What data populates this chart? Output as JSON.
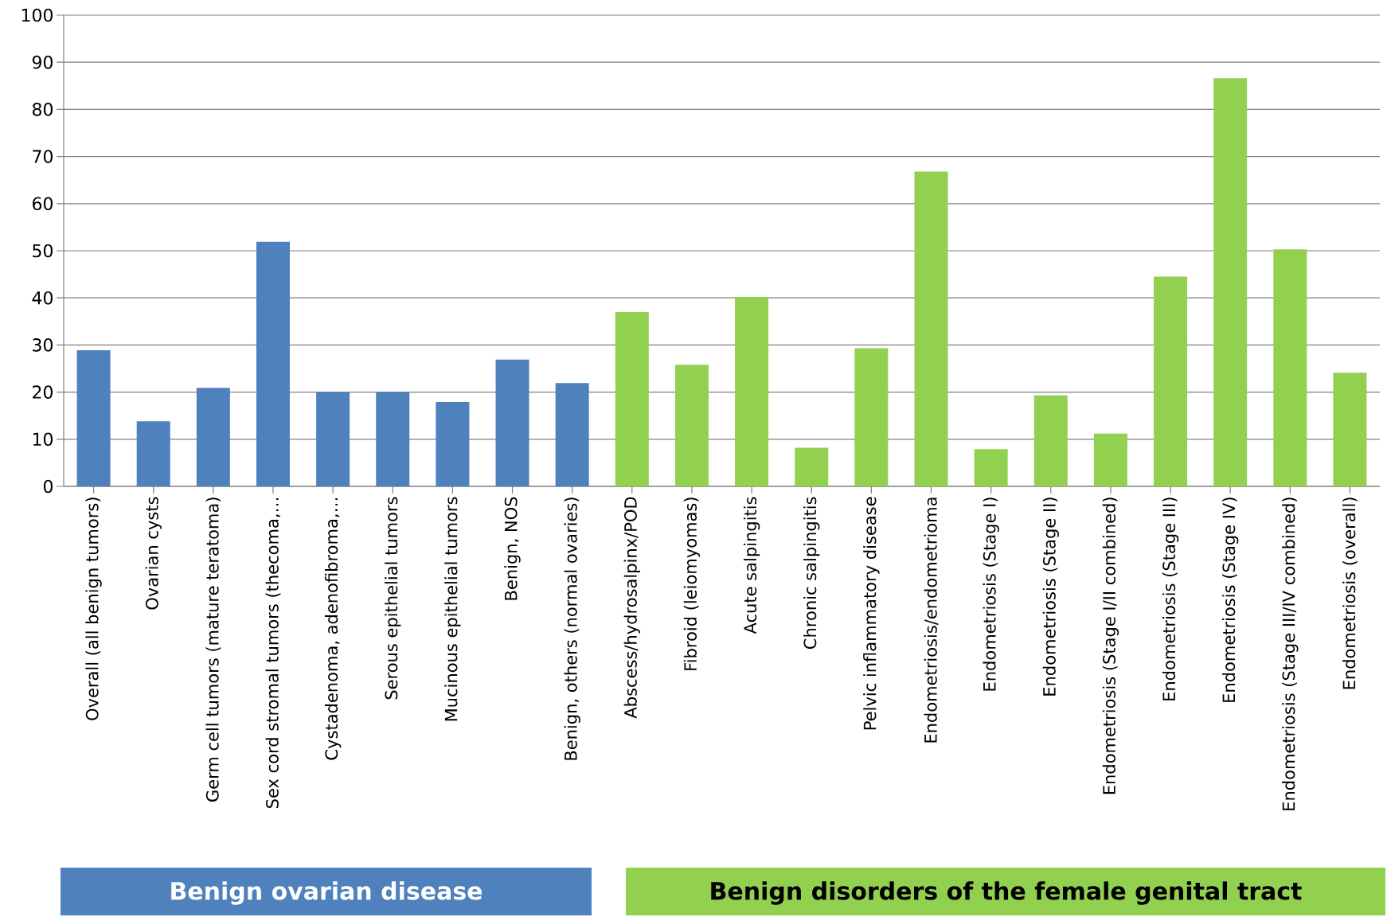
{
  "chart_data": {
    "type": "bar",
    "categories": [
      "Overall (all benign tumors)",
      "Ovarian cysts",
      "Germ cell tumors (mature teratoma)",
      "Sex cord stromal tumors (thecoma,…",
      "Cystadenoma, adenofibroma,…",
      "Serous epithelial tumors",
      "Mucinous epithelial tumors",
      "Benign, NOS",
      "Benign, others (normal ovaries)",
      "Abscess/hydrosalpinx/POD",
      "Fibroid (leiomyomas)",
      "Acute salpingitis",
      "Chronic salpingitis",
      "Pelvic inflammatory disease",
      "Endometriosis/endometrioma",
      "Endometriosis (Stage I)",
      "Endometriosis (Stage II)",
      "Endometriosis (Stage I/II combined)",
      "Endometriosis (Stage III)",
      "Endometriosis (Stage IV)",
      "Endometriosis (Stage III/IV combined)",
      "Endometriosis (overall)"
    ],
    "values": [
      28.9,
      13.8,
      20.9,
      51.9,
      20,
      20,
      17.9,
      26.9,
      21.9,
      37,
      25.8,
      40.2,
      8.2,
      29.3,
      66.8,
      7.9,
      19.3,
      11.2,
      44.5,
      86.6,
      50.3,
      24.1
    ],
    "colors": [
      "#4f81bd",
      "#4f81bd",
      "#4f81bd",
      "#4f81bd",
      "#4f81bd",
      "#4f81bd",
      "#4f81bd",
      "#4f81bd",
      "#4f81bd",
      "#92d050",
      "#92d050",
      "#92d050",
      "#92d050",
      "#92d050",
      "#92d050",
      "#92d050",
      "#92d050",
      "#92d050",
      "#92d050",
      "#92d050",
      "#92d050",
      "#92d050"
    ],
    "ylim": [
      0,
      100
    ],
    "yticks": [
      0,
      10,
      20,
      30,
      40,
      50,
      60,
      70,
      80,
      90,
      100
    ],
    "grid": "y",
    "annotations": [
      "Benign ovarian disease",
      "Benign disorders of the female genital tract"
    ]
  }
}
